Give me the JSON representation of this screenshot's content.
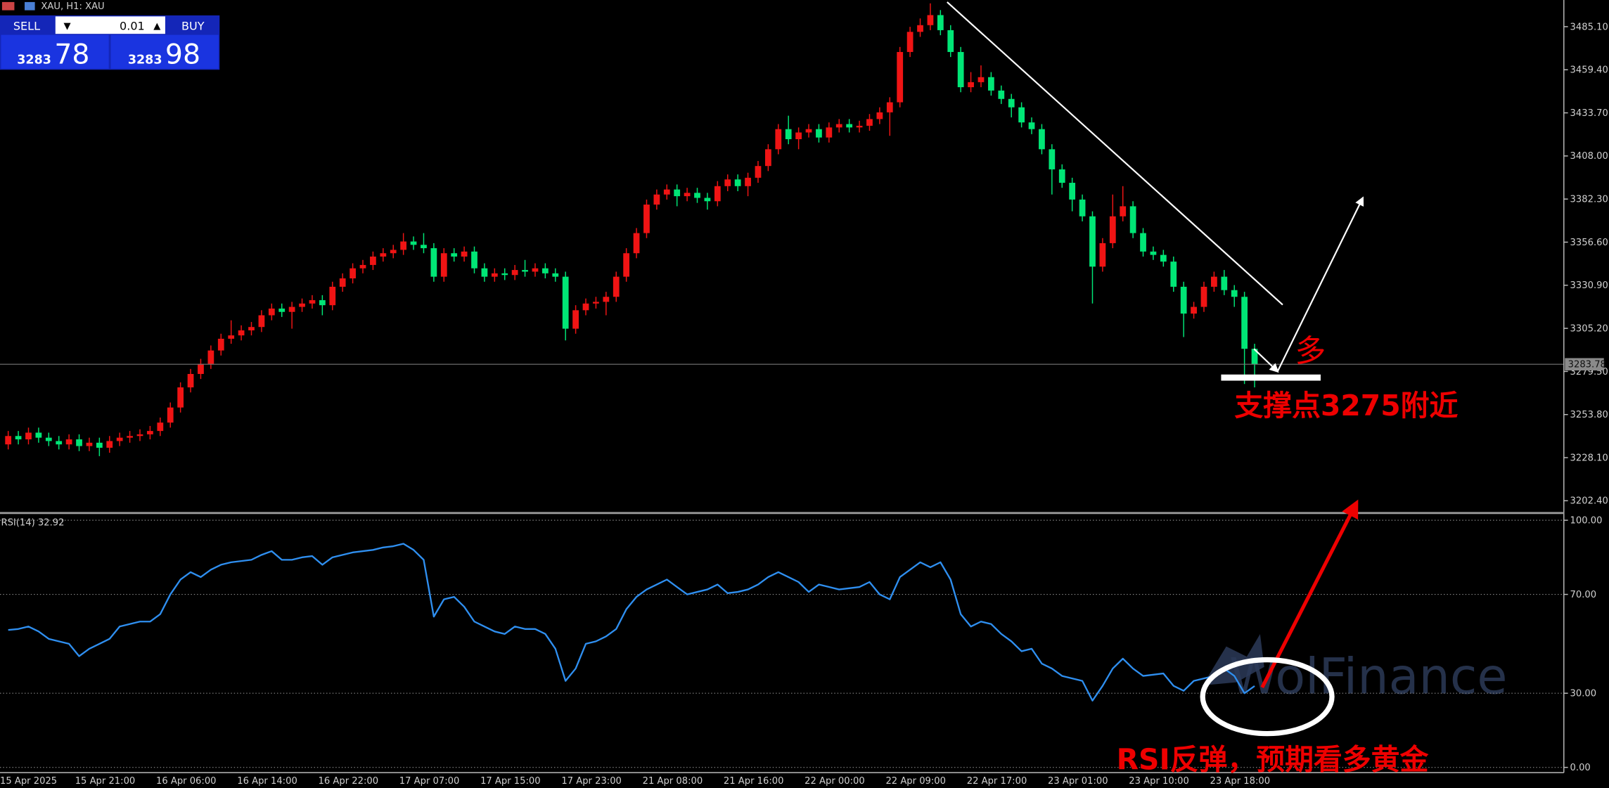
{
  "window": {
    "title": "XAU, H1: XAU"
  },
  "trade_panel": {
    "sell_label": "SELL",
    "lot": "0.01",
    "buy_label": "BUY",
    "bid_big": "3283",
    "bid_small": "78",
    "ask_big": "3283",
    "ask_small": "98"
  },
  "watermark": "WolFinance",
  "chart_data": [
    {
      "type": "candlestick",
      "categories": [
        "15 Apr 2025",
        null,
        null,
        null,
        null,
        null,
        null,
        "15 Apr 21:00",
        null,
        null,
        null,
        null,
        null,
        null,
        null,
        "16 Apr 06:00",
        null,
        null,
        null,
        null,
        null,
        null,
        null,
        "16 Apr 14:00",
        null,
        null,
        null,
        null,
        null,
        null,
        null,
        "16 Apr 22:00",
        null,
        null,
        null,
        null,
        null,
        null,
        null,
        "17 Apr 07:00",
        null,
        null,
        null,
        null,
        null,
        null,
        null,
        "17 Apr 15:00",
        null,
        null,
        null,
        null,
        null,
        null,
        null,
        "17 Apr 23:00",
        null,
        null,
        null,
        null,
        null,
        null,
        null,
        "21 Apr 08:00",
        null,
        null,
        null,
        null,
        null,
        null,
        null,
        "21 Apr 16:00",
        null,
        null,
        null,
        null,
        null,
        null,
        null,
        "22 Apr 00:00",
        null,
        null,
        null,
        null,
        null,
        null,
        null,
        "22 Apr 09:00",
        null,
        null,
        null,
        null,
        null,
        null,
        null,
        "22 Apr 17:00",
        null,
        null,
        null,
        null,
        null,
        null,
        null,
        "23 Apr 01:00",
        null,
        null,
        null,
        null,
        null,
        null,
        null,
        "23 Apr 10:00",
        null,
        null,
        null,
        null,
        null,
        null,
        null,
        "23 Apr 18:00",
        null,
        null,
        null,
        null
      ],
      "series": [
        {
          "up_color": "#f01414",
          "down_color": "#00e676",
          "open": [
            3236,
            3241,
            3239,
            3243,
            3240,
            3238,
            3236,
            3239,
            3235,
            3237,
            3234,
            3238,
            3240,
            3241,
            3242,
            3244,
            3249,
            3258,
            3270,
            3278,
            3284,
            3292,
            3299,
            3301,
            3304,
            3306,
            3313,
            3317,
            3315,
            3318,
            3320,
            3322,
            3319,
            3330,
            3335,
            3341,
            3343,
            3348,
            3350,
            3352,
            3357,
            3355,
            3353,
            3336,
            3350,
            3348,
            3351,
            3341,
            3336,
            3338,
            3337,
            3340,
            3339,
            3341,
            3338,
            3336,
            3305,
            3316,
            3320,
            3321,
            3324,
            3336,
            3350,
            3362,
            3379,
            3385,
            3388,
            3384,
            3386,
            3383,
            3381,
            3390,
            3394,
            3390,
            3395,
            3402,
            3412,
            3424,
            3418,
            3422,
            3424,
            3419,
            3425,
            3427,
            3425,
            3426,
            3430,
            3434,
            3440,
            3470,
            3482,
            3486,
            3492,
            3483,
            3470,
            3449,
            3452,
            3455,
            3447,
            3442,
            3437,
            3428,
            3424,
            3412,
            3400,
            3392,
            3382,
            3372,
            3342,
            3356,
            3372,
            3378,
            3362,
            3351,
            3349,
            3345,
            3330,
            3314,
            3318,
            3330,
            3336,
            3328,
            3324,
            3293
          ],
          "high": [
            3244,
            3244,
            3246,
            3246,
            3243,
            3241,
            3242,
            3242,
            3240,
            3240,
            3241,
            3243,
            3244,
            3245,
            3247,
            3252,
            3261,
            3273,
            3281,
            3287,
            3295,
            3302,
            3310,
            3307,
            3309,
            3316,
            3320,
            3320,
            3321,
            3323,
            3325,
            3325,
            3333,
            3338,
            3344,
            3346,
            3351,
            3353,
            3355,
            3362,
            3360,
            3362,
            3356,
            3353,
            3353,
            3354,
            3354,
            3344,
            3341,
            3341,
            3343,
            3346,
            3344,
            3344,
            3341,
            3339,
            3319,
            3323,
            3324,
            3327,
            3339,
            3353,
            3365,
            3382,
            3388,
            3391,
            3391,
            3389,
            3389,
            3386,
            3393,
            3397,
            3397,
            3398,
            3405,
            3415,
            3427,
            3432,
            3425,
            3427,
            3427,
            3428,
            3430,
            3430,
            3429,
            3433,
            3437,
            3443,
            3473,
            3485,
            3490,
            3499,
            3495,
            3486,
            3473,
            3458,
            3462,
            3458,
            3450,
            3445,
            3440,
            3431,
            3427,
            3415,
            3403,
            3395,
            3385,
            3375,
            3359,
            3385,
            3390,
            3381,
            3365,
            3354,
            3352,
            3348,
            3333,
            3321,
            3333,
            3339,
            3340,
            3331,
            3327,
            3296
          ],
          "low": [
            3233,
            3236,
            3236,
            3237,
            3235,
            3233,
            3233,
            3232,
            3232,
            3229,
            3231,
            3235,
            3237,
            3238,
            3239,
            3241,
            3246,
            3255,
            3267,
            3275,
            3281,
            3289,
            3296,
            3298,
            3301,
            3303,
            3310,
            3312,
            3305,
            3315,
            3317,
            3313,
            3316,
            3327,
            3332,
            3338,
            3340,
            3345,
            3347,
            3349,
            3352,
            3350,
            3333,
            3333,
            3345,
            3345,
            3338,
            3333,
            3333,
            3334,
            3334,
            3336,
            3336,
            3335,
            3333,
            3298,
            3302,
            3313,
            3317,
            3313,
            3321,
            3333,
            3347,
            3359,
            3376,
            3382,
            3378,
            3381,
            3380,
            3376,
            3378,
            3387,
            3387,
            3384,
            3392,
            3399,
            3409,
            3415,
            3412,
            3419,
            3416,
            3416,
            3422,
            3422,
            3422,
            3423,
            3427,
            3420,
            3437,
            3467,
            3479,
            3483,
            3480,
            3467,
            3446,
            3446,
            3449,
            3444,
            3439,
            3431,
            3425,
            3421,
            3409,
            3385,
            3389,
            3375,
            3369,
            3320,
            3339,
            3353,
            3369,
            3359,
            3348,
            3346,
            3342,
            3327,
            3300,
            3311,
            3315,
            3327,
            3325,
            3318,
            3272,
            3270
          ],
          "close": [
            3241,
            3239,
            3243,
            3240,
            3238,
            3236,
            3239,
            3235,
            3237,
            3234,
            3238,
            3240,
            3241,
            3242,
            3244,
            3249,
            3258,
            3270,
            3278,
            3284,
            3292,
            3299,
            3301,
            3304,
            3306,
            3313,
            3317,
            3315,
            3318,
            3320,
            3322,
            3319,
            3330,
            3335,
            3341,
            3343,
            3348,
            3350,
            3352,
            3357,
            3355,
            3353,
            3336,
            3350,
            3348,
            3351,
            3341,
            3336,
            3338,
            3337,
            3340,
            3339,
            3341,
            3338,
            3336,
            3305,
            3316,
            3320,
            3321,
            3324,
            3336,
            3350,
            3362,
            3379,
            3385,
            3388,
            3384,
            3386,
            3383,
            3381,
            3390,
            3394,
            3390,
            3395,
            3402,
            3412,
            3424,
            3418,
            3422,
            3424,
            3419,
            3425,
            3427,
            3425,
            3426,
            3430,
            3434,
            3440,
            3470,
            3482,
            3486,
            3492,
            3483,
            3470,
            3449,
            3452,
            3455,
            3447,
            3442,
            3437,
            3428,
            3424,
            3412,
            3400,
            3392,
            3382,
            3372,
            3342,
            3356,
            3372,
            3378,
            3362,
            3351,
            3349,
            3345,
            3330,
            3314,
            3318,
            3330,
            3336,
            3328,
            3324,
            3293,
            3283.78
          ]
        }
      ],
      "ylim": [
        3196.3,
        3501
      ],
      "yticks": [
        {
          "value": 3485.1,
          "label": "3485.10"
        },
        {
          "value": 3459.4,
          "label": "3459.40"
        },
        {
          "value": 3433.7,
          "label": "3433.70"
        },
        {
          "value": 3408,
          "label": "3408.00"
        },
        {
          "value": 3382.3,
          "label": "3382.30"
        },
        {
          "value": 3356.6,
          "label": "3356.60"
        },
        {
          "value": 3330.9,
          "label": "3330.90"
        },
        {
          "value": 3305.2,
          "label": "3305.20"
        },
        {
          "value": 3279.5,
          "label": "3279.50"
        },
        {
          "value": 3253.8,
          "label": "3253.80"
        },
        {
          "value": 3228.1,
          "label": "3228.10"
        },
        {
          "value": 3202.4,
          "label": "3202.40"
        }
      ],
      "annotations": [
        "多",
        "支撑点3275附近"
      ]
    },
    {
      "type": "line",
      "title": "RSI(14) 32.92",
      "series": [
        {
          "color": "#2f8ff0",
          "values": [
            55.6,
            56,
            57,
            55,
            52,
            51,
            50,
            45,
            48,
            50,
            52,
            57,
            58,
            59,
            59,
            62,
            70,
            76,
            79,
            77,
            80,
            82,
            83,
            83.5,
            84,
            86,
            87.5,
            84,
            84,
            85,
            85.5,
            82,
            85,
            86,
            87,
            87.5,
            88,
            89,
            89.5,
            90.5,
            88,
            84,
            61,
            68,
            69,
            65,
            59,
            57,
            55,
            54,
            57,
            56,
            56,
            54,
            48,
            35,
            40,
            50,
            51,
            53,
            56,
            64,
            69,
            72,
            74,
            76,
            73,
            70,
            71,
            72,
            74,
            70.5,
            71,
            72,
            74,
            77,
            79,
            77,
            75,
            71,
            74,
            73,
            72,
            72.5,
            73,
            75,
            70,
            68,
            77,
            80,
            83,
            81,
            83,
            76,
            62,
            57,
            59,
            58,
            54,
            51,
            47,
            48,
            42,
            40,
            37,
            36,
            35,
            27,
            33,
            40,
            44,
            40,
            37,
            37.5,
            38,
            33,
            31,
            35,
            36,
            37,
            40,
            37,
            30,
            32.92
          ]
        }
      ],
      "ylim": [
        -1.7,
        102.1
      ],
      "yticks": [
        {
          "value": 100,
          "label": "100.00"
        },
        {
          "value": 70,
          "label": "70.00"
        },
        {
          "value": 30,
          "label": "30.00"
        },
        {
          "value": 0,
          "label": "0.00"
        }
      ],
      "annotations": [
        "RSI反弹，预期看多黄金"
      ]
    }
  ]
}
